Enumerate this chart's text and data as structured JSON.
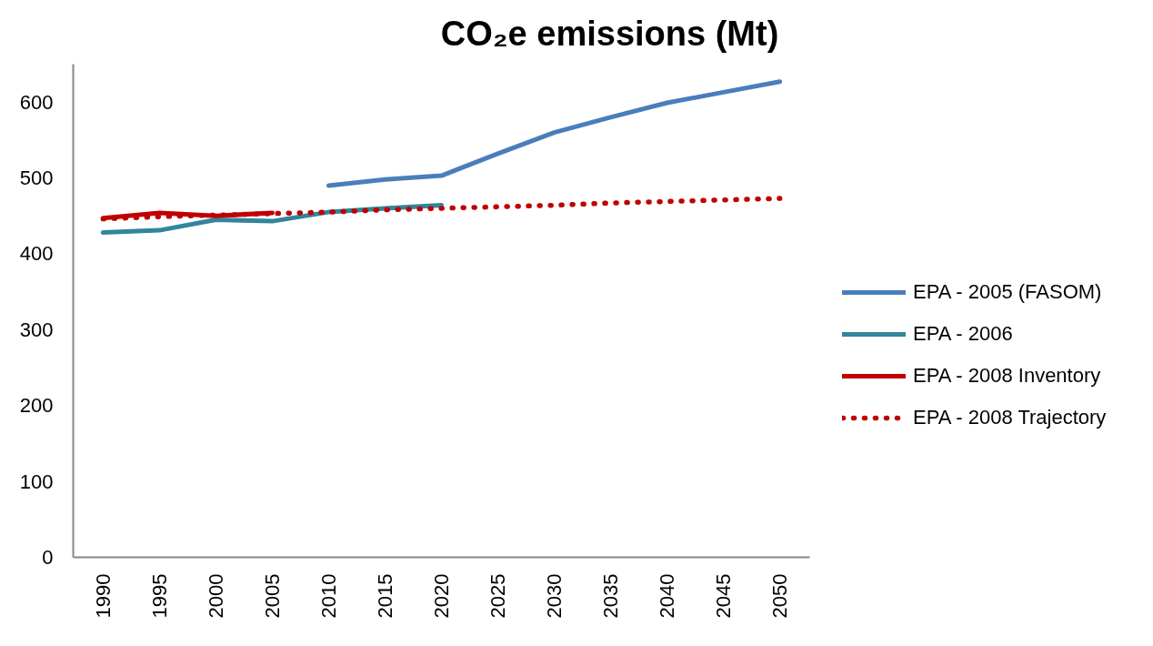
{
  "chart_data": {
    "type": "line",
    "title": "CO₂e emissions (Mt)",
    "categories": [
      "1990",
      "1995",
      "2000",
      "2005",
      "2010",
      "2015",
      "2020",
      "2025",
      "2030",
      "2035",
      "2040",
      "2045",
      "2050"
    ],
    "ylim": [
      0,
      650
    ],
    "yticks": [
      0,
      100,
      200,
      300,
      400,
      500,
      600
    ],
    "grid": false,
    "legend": "right",
    "series": [
      {
        "name": "EPA - 2005 (FASOM)",
        "color": "#4a7ebb",
        "values": [
          null,
          null,
          null,
          null,
          490,
          498,
          503,
          532,
          560,
          580,
          599,
          613,
          627
        ]
      },
      {
        "name": "EPA - 2006",
        "color": "#31859c",
        "values": [
          428,
          431,
          445,
          443,
          455,
          460,
          464,
          null,
          null,
          null,
          null,
          null,
          null
        ]
      },
      {
        "name": "EPA - 2008 Inventory",
        "color": "#c00000",
        "values": [
          447,
          454,
          450,
          454,
          null,
          null,
          null,
          null,
          null,
          null,
          null,
          null,
          null
        ]
      },
      {
        "name": "EPA - 2008 Trajectory",
        "color": "#c00000",
        "line_style": "dotted",
        "values": [
          446,
          449,
          451,
          453,
          455,
          458,
          460,
          462,
          464,
          467,
          469,
          471,
          473
        ]
      }
    ]
  }
}
